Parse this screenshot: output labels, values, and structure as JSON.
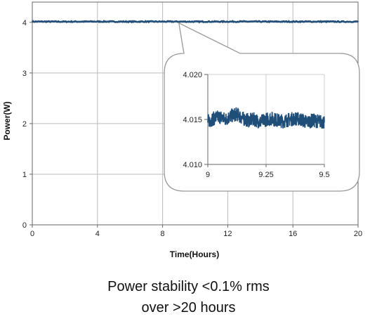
{
  "chart_data": [
    {
      "type": "line",
      "title": "",
      "xlabel": "Time(Hours)",
      "ylabel": "Power(W)",
      "xlim": [
        0,
        20
      ],
      "ylim": [
        0,
        4.4
      ],
      "x_ticks": [
        "0",
        "4",
        "8",
        "12",
        "16",
        "20"
      ],
      "y_ticks": [
        "0",
        "1",
        "2",
        "3",
        "4"
      ],
      "grid": true,
      "series": [
        {
          "color": "#1f4e79",
          "x": [
            0,
            1,
            2,
            3,
            4,
            5,
            6,
            7,
            8,
            9,
            10,
            11,
            12,
            13,
            14,
            15,
            16,
            17,
            18,
            19,
            20
          ],
          "values": [
            4.015,
            4.015,
            4.014,
            4.015,
            4.016,
            4.015,
            4.014,
            4.015,
            4.015,
            4.015,
            4.014,
            4.015,
            4.015,
            4.016,
            4.015,
            4.014,
            4.015,
            4.015,
            4.015,
            4.014,
            4.015
          ]
        }
      ]
    },
    {
      "type": "line",
      "title": "",
      "xlabel": "",
      "ylabel": "",
      "xlim": [
        9,
        9.5
      ],
      "ylim": [
        4.01,
        4.02
      ],
      "x_ticks": [
        "9",
        "9.25",
        "9.5"
      ],
      "y_ticks": [
        "4.010",
        "4.015",
        "4.020"
      ],
      "grid": true,
      "series": [
        {
          "color": "#1f4e79",
          "x": [
            9.0,
            9.025,
            9.05,
            9.075,
            9.1,
            9.125,
            9.15,
            9.175,
            9.2,
            9.225,
            9.25,
            9.275,
            9.3,
            9.325,
            9.35,
            9.375,
            9.4,
            9.425,
            9.45,
            9.475,
            9.5
          ],
          "values": [
            4.0148,
            4.0151,
            4.0153,
            4.015,
            4.0154,
            4.0156,
            4.0151,
            4.0149,
            4.015,
            4.0147,
            4.015,
            4.0151,
            4.0149,
            4.0148,
            4.015,
            4.0151,
            4.015,
            4.0147,
            4.0149,
            4.0148,
            4.0147
          ],
          "noise_amplitude": 0.0008
        }
      ]
    }
  ],
  "caption": {
    "line1": "Power stability <0.1% rms",
    "line2": "over >20 hours"
  },
  "colors": {
    "series": "#1f4e79",
    "grid": "#bbbbbb",
    "inset_border": "#999999",
    "axis": "#666666"
  }
}
